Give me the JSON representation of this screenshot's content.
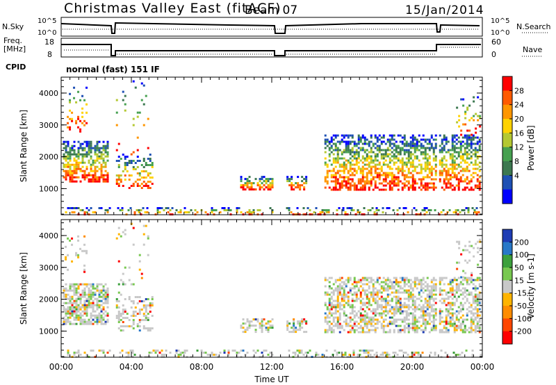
{
  "header": {
    "title": "Christmas Valley East (fitACF)",
    "beam": "Beam 07",
    "date": "15/Jan/2014"
  },
  "noise_panel": {
    "left_label": "N.Sky",
    "right_label": "N.Search",
    "left_ticks": [
      "10^5",
      "10^0"
    ],
    "right_ticks": [
      "10^5",
      "10^0"
    ]
  },
  "freq_panel": {
    "left_label_line1": "Freq.",
    "left_label_line2": "[MHz]",
    "right_label": "Nave",
    "left_ticks": [
      "18",
      "8"
    ],
    "right_ticks": [
      "60",
      "0"
    ]
  },
  "cpid": {
    "label": "CPID",
    "value": "normal (fast) 151 IF"
  },
  "chart_data": [
    {
      "type": "heatmap",
      "name": "power",
      "ylabel": "Slant Range [km]",
      "x_ticks": [
        "00:00",
        "04:00",
        "08:00",
        "12:00",
        "16:00",
        "20:00",
        "00:00"
      ],
      "x_range_hours": [
        0,
        24
      ],
      "y_ticks": [
        1000,
        2000,
        3000,
        4000
      ],
      "ylim": [
        180,
        4500
      ],
      "colorbar": {
        "label": "Power [dB]",
        "ticks": [
          "28",
          "24",
          "20",
          "16",
          "12",
          "8",
          "4"
        ],
        "colors": [
          "#ff0000",
          "#ff5a00",
          "#ff9600",
          "#ffd200",
          "#b4c832",
          "#46a050",
          "#3c7850",
          "#1e50b4",
          "#0000ff"
        ]
      }
    },
    {
      "type": "heatmap",
      "name": "velocity",
      "ylabel": "Slant Range [km]",
      "x_ticks": [
        "00:00",
        "04:00",
        "08:00",
        "12:00",
        "16:00",
        "20:00",
        "00:00"
      ],
      "x_range_hours": [
        0,
        24
      ],
      "y_ticks": [
        1000,
        2000,
        3000,
        4000
      ],
      "ylim": [
        180,
        4500
      ],
      "xlabel": "Time UT",
      "colorbar": {
        "label": "Velocity [m s-1]",
        "ticks": [
          "200",
          "100",
          "50",
          "15",
          "-15",
          "-50",
          "-100",
          "-200"
        ],
        "colors": [
          "#1e3cb4",
          "#2878c8",
          "#3ca03c",
          "#78c850",
          "#c8c8c8",
          "#ffb400",
          "#ff8c00",
          "#ff4600",
          "#ff0000"
        ]
      }
    }
  ],
  "colors": {
    "ground_scatter": "#a0a0a0",
    "axis": "#000000"
  }
}
